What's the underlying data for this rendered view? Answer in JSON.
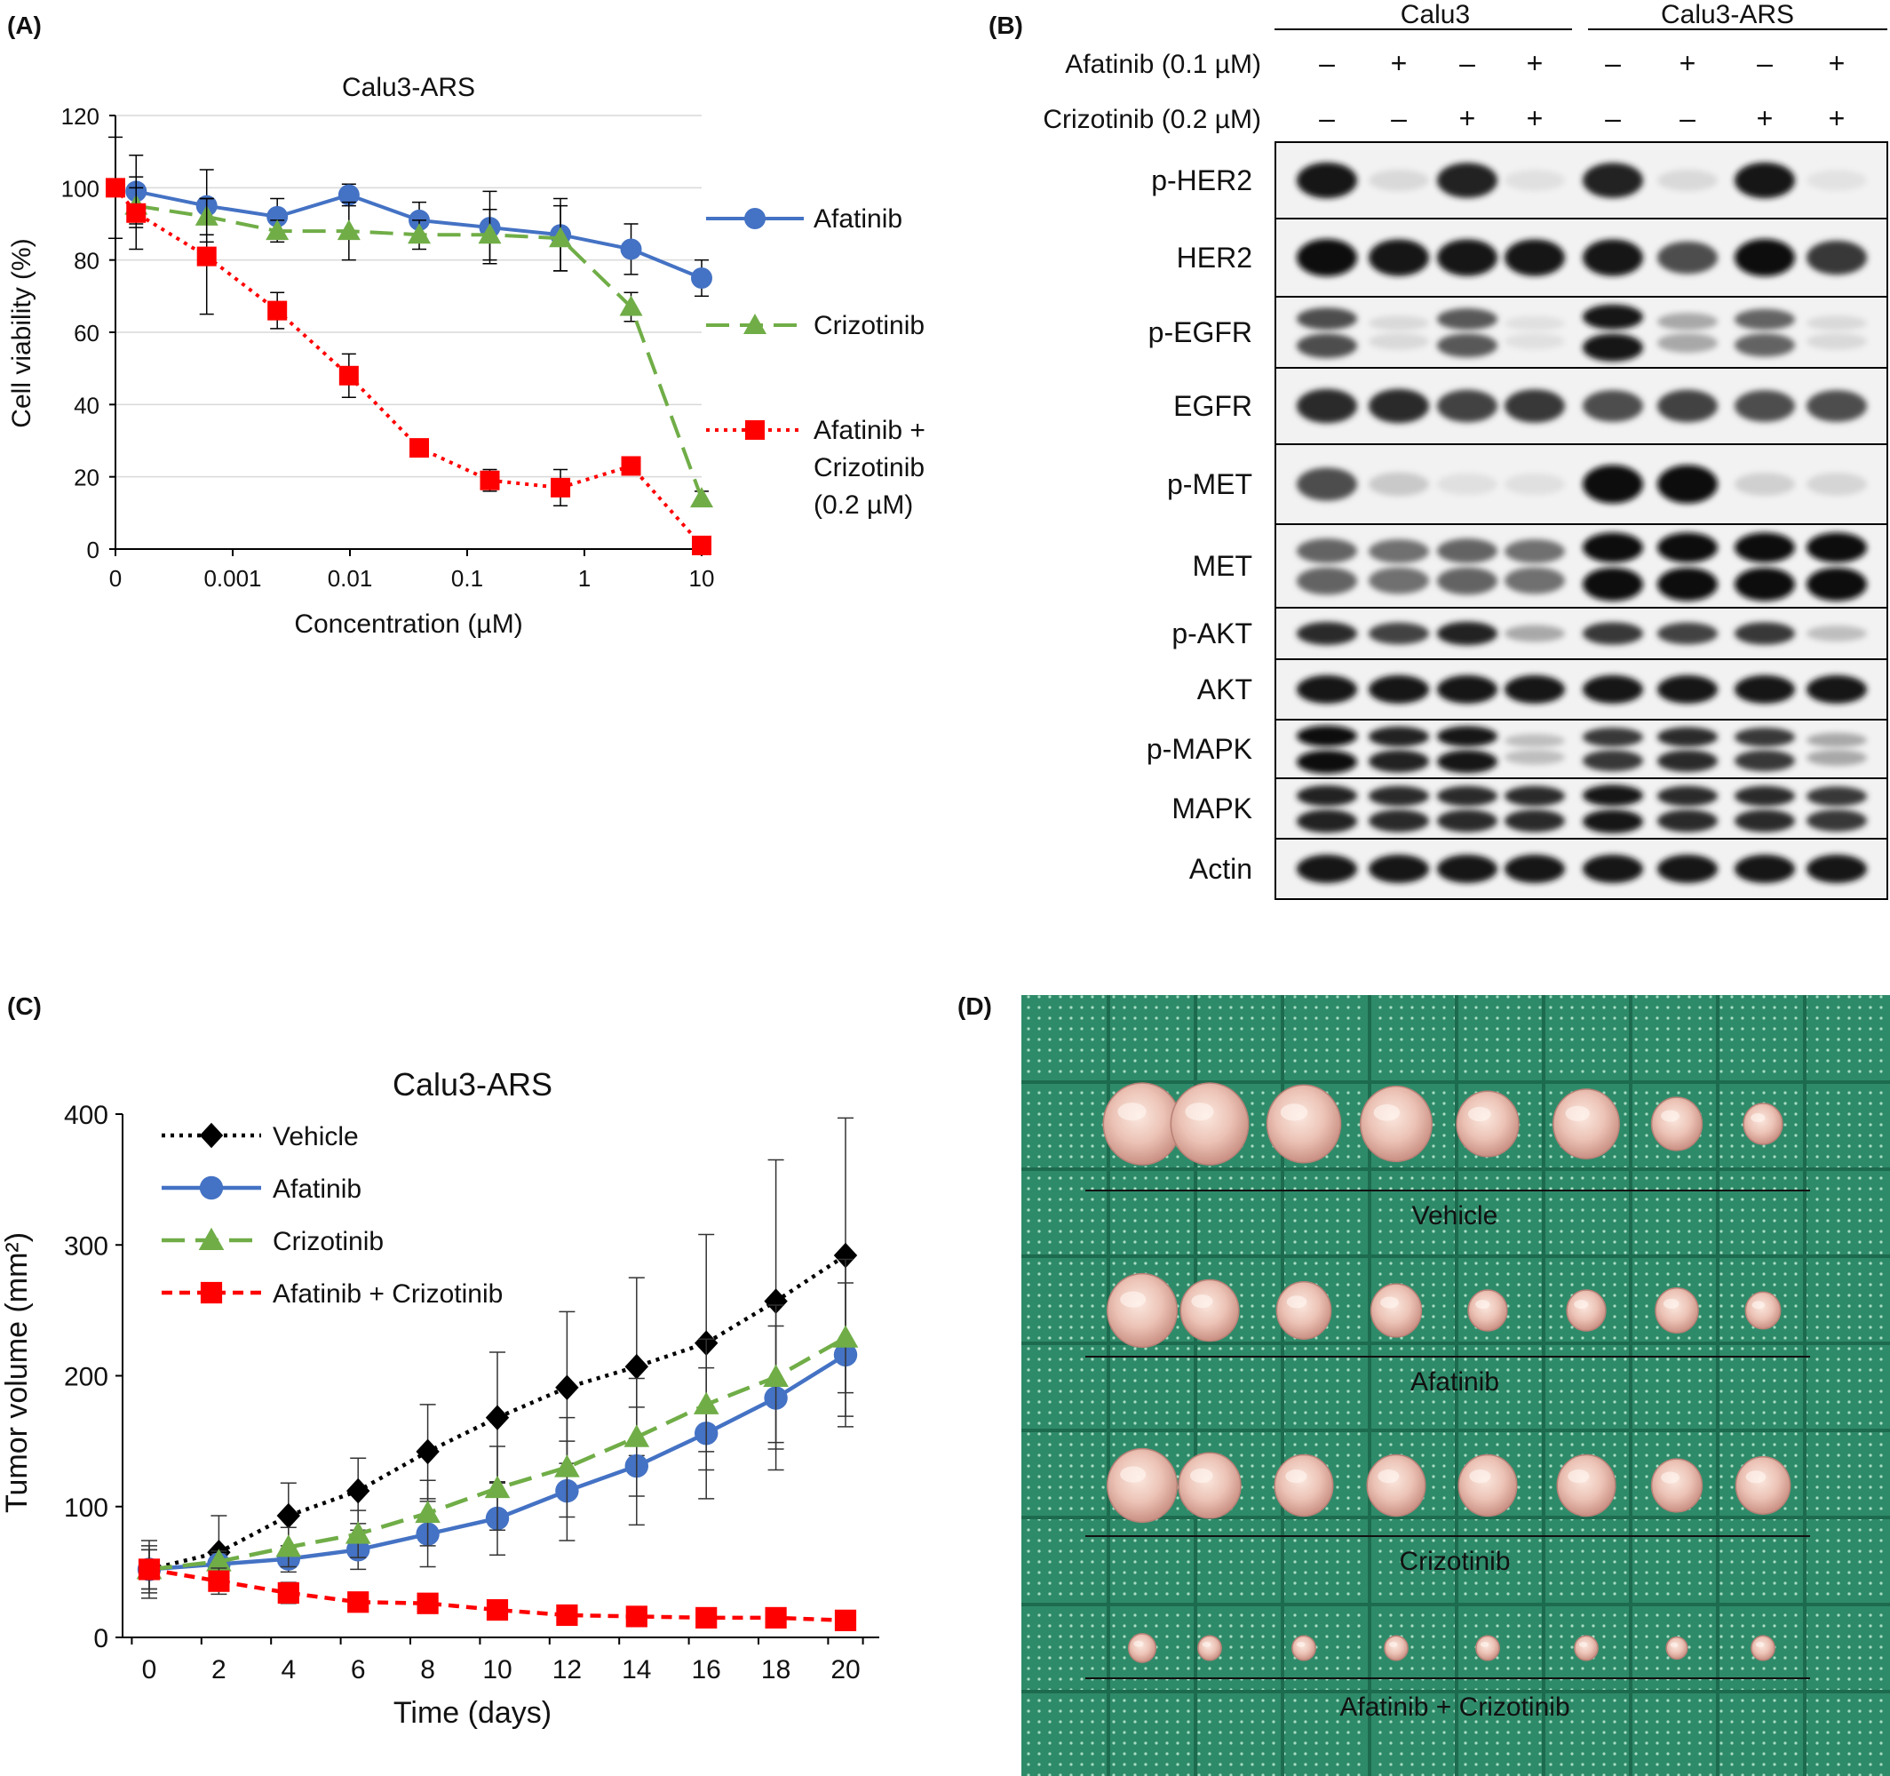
{
  "panels": {
    "A": {
      "letter": "(A)",
      "chart_data": {
        "type": "line",
        "title": "Calu3-ARS",
        "xlabel": "Concentration (µM)",
        "ylabel": "Cell viability (%)",
        "x_scale": "log",
        "ylim": [
          0,
          120
        ],
        "y_ticks": [
          "0",
          "20",
          "40",
          "60",
          "80",
          "100",
          "120"
        ],
        "x_ticks": [
          "0",
          "0.001",
          "0.01",
          "0.1",
          "1",
          "10"
        ],
        "grid": "horizontal",
        "legend_position": "right",
        "x": [
          0,
          0.00015,
          0.0006,
          0.0024,
          0.0098,
          0.039,
          0.156,
          0.625,
          2.5,
          10
        ],
        "series": [
          {
            "name": "Afatinib",
            "color": "#4472c4",
            "marker": "circle",
            "dash": "solid",
            "values": [
              null,
              99,
              95,
              92,
              98,
              91,
              89,
              87,
              83,
              75
            ],
            "errors": [
              null,
              10,
              10,
              5,
              3,
              5,
              10,
              10,
              7,
              5
            ]
          },
          {
            "name": "Crizotinib",
            "color": "#70ad47",
            "marker": "triangle",
            "dash": "long-dash",
            "values": [
              null,
              95,
              92,
              88,
              88,
              87,
              87,
              86,
              67,
              14
            ],
            "errors": [
              null,
              5,
              5,
              3,
              8,
              4,
              7,
              9,
              4,
              2
            ]
          },
          {
            "name": "Afatinib + Crizotinib (0.2 µM)",
            "name_lines": [
              "Afatinib +",
              "Crizotinib",
              "(0.2 µM)"
            ],
            "color": "#ff0000",
            "marker": "square",
            "dash": "dotted",
            "values": [
              100,
              93,
              81,
              66,
              48,
              28,
              19,
              17,
              23,
              1
            ],
            "errors": [
              14,
              10,
              16,
              5,
              6,
              2,
              3,
              5,
              2,
              1
            ]
          }
        ]
      }
    },
    "B": {
      "letter": "(B)",
      "groups": [
        "Calu3",
        "Calu3-ARS"
      ],
      "treatments": [
        {
          "label": "Afatinib (0.1 µM)",
          "signs": [
            "–",
            "+",
            "–",
            "+",
            "–",
            "+",
            "–",
            "+"
          ]
        },
        {
          "label": "Crizotinib (0.2 µM)",
          "signs": [
            "–",
            "–",
            "+",
            "+",
            "–",
            "–",
            "+",
            "+"
          ]
        }
      ],
      "blots": [
        {
          "label": "p-HER2",
          "intensity": [
            0.95,
            0.08,
            0.9,
            0.05,
            0.9,
            0.08,
            0.95,
            0.04
          ],
          "bands": 1
        },
        {
          "label": "HER2",
          "intensity": [
            1.0,
            0.95,
            0.95,
            0.95,
            0.95,
            0.7,
            1.0,
            0.8
          ],
          "bands": 1
        },
        {
          "label": "p-EGFR",
          "intensity": [
            0.7,
            0.08,
            0.65,
            0.05,
            0.95,
            0.3,
            0.6,
            0.08
          ],
          "bands": 2
        },
        {
          "label": "EGFR",
          "intensity": [
            0.85,
            0.85,
            0.75,
            0.8,
            0.7,
            0.75,
            0.7,
            0.7
          ],
          "bands": 1
        },
        {
          "label": "p-MET",
          "intensity": [
            0.7,
            0.15,
            0.05,
            0.05,
            1.0,
            1.0,
            0.12,
            0.1
          ],
          "bands": 1
        },
        {
          "label": "MET",
          "intensity": [
            0.6,
            0.55,
            0.6,
            0.55,
            1.0,
            1.0,
            1.0,
            1.0
          ],
          "bands": 2
        },
        {
          "label": "p-AKT",
          "intensity": [
            0.85,
            0.75,
            0.9,
            0.3,
            0.8,
            0.75,
            0.8,
            0.2
          ],
          "bands": 1
        },
        {
          "label": "AKT",
          "intensity": [
            0.95,
            0.95,
            0.95,
            0.95,
            0.95,
            0.95,
            0.95,
            0.95
          ],
          "bands": 1
        },
        {
          "label": "p-MAPK",
          "intensity": [
            1.0,
            0.9,
            0.95,
            0.2,
            0.8,
            0.85,
            0.8,
            0.3
          ],
          "bands": 2
        },
        {
          "label": "MAPK",
          "intensity": [
            0.9,
            0.85,
            0.85,
            0.85,
            0.95,
            0.85,
            0.85,
            0.8
          ],
          "bands": 2
        },
        {
          "label": "Actin",
          "intensity": [
            0.95,
            0.95,
            0.95,
            0.95,
            0.95,
            0.95,
            0.95,
            0.95
          ],
          "bands": 1
        }
      ]
    },
    "C": {
      "letter": "(C)",
      "chart_data": {
        "type": "line",
        "title": "Calu3-ARS",
        "xlabel": "Time (days)",
        "ylabel": "Tumor volume (mm²)",
        "ylim": [
          0,
          400
        ],
        "y_ticks": [
          "0",
          "100",
          "200",
          "300",
          "400"
        ],
        "x": [
          0,
          2,
          4,
          6,
          8,
          10,
          12,
          14,
          16,
          18,
          20
        ],
        "legend_position": "top-left",
        "series": [
          {
            "name": "Vehicle",
            "color": "#000000",
            "marker": "diamond",
            "dash": "dotted",
            "values": [
              52,
              65,
              93,
              112,
              142,
              168,
              191,
              207,
              225,
              257,
              292
            ],
            "errors": [
              22,
              28,
              25,
              25,
              36,
              50,
              58,
              68,
              83,
              108,
              105
            ]
          },
          {
            "name": "Afatinib",
            "color": "#4472c4",
            "marker": "circle",
            "dash": "solid",
            "values": [
              52,
              56,
              60,
              67,
              79,
              91,
              112,
              131,
              156,
              183,
              216
            ],
            "errors": [
              15,
              8,
              10,
              15,
              25,
              28,
              38,
              45,
              50,
              55,
              55
            ]
          },
          {
            "name": "Crizotinib",
            "color": "#70ad47",
            "marker": "triangle",
            "dash": "long-dash",
            "values": [
              52,
              58,
              69,
              79,
              95,
              114,
              130,
              153,
              178,
              199,
              229
            ],
            "errors": [
              15,
              8,
              15,
              18,
              25,
              32,
              38,
              45,
              50,
              55,
              60
            ]
          },
          {
            "name": "Afatinib + Crizotinib",
            "color": "#ff0000",
            "marker": "square",
            "dash": "short-dash",
            "values": [
              52,
              43,
              34,
              27,
              26,
              21,
              17,
              16,
              15,
              15,
              13
            ],
            "errors": [
              18,
              10,
              8,
              7,
              7,
              6,
              5,
              5,
              5,
              3,
              3
            ]
          }
        ]
      }
    },
    "D": {
      "letter": "(D)",
      "colors": {
        "mat": "#2e8b6a",
        "grid": "#1d6b4f",
        "dot": "#9fd9bd"
      },
      "rows": [
        {
          "label": "Vehicle",
          "tumor_sizes": [
            1.0,
            1.0,
            0.95,
            0.92,
            0.8,
            0.85,
            0.65,
            0.5
          ]
        },
        {
          "label": "Afatinib",
          "tumor_sizes": [
            0.9,
            0.75,
            0.7,
            0.65,
            0.5,
            0.5,
            0.55,
            0.45
          ]
        },
        {
          "label": "Crizotinib",
          "tumor_sizes": [
            0.9,
            0.8,
            0.75,
            0.75,
            0.75,
            0.75,
            0.65,
            0.7
          ]
        },
        {
          "label": "Afatinib + Crizotinib",
          "tumor_sizes": [
            0.35,
            0.3,
            0.3,
            0.3,
            0.3,
            0.3,
            0.27,
            0.3
          ]
        }
      ]
    }
  }
}
